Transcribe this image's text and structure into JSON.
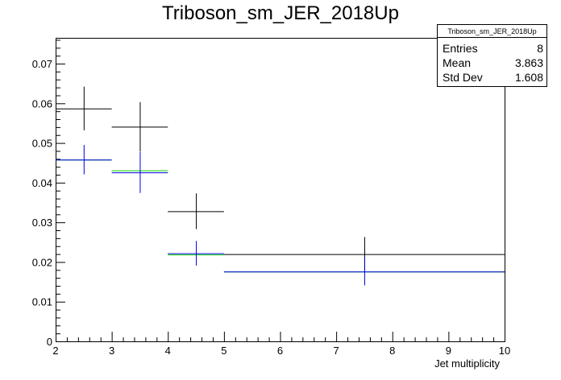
{
  "chart_data": {
    "type": "scatter",
    "title": "Triboson_sm_JER_2018Up",
    "xlabel": "Jet multiplicity",
    "ylabel": "",
    "xlim": [
      2,
      10
    ],
    "ylim": [
      0,
      0.0765
    ],
    "x_ticks": [
      "2",
      "3",
      "4",
      "5",
      "6",
      "7",
      "8",
      "9",
      "10"
    ],
    "y_ticks": [
      "0",
      "0.01",
      "0.02",
      "0.03",
      "0.04",
      "0.05",
      "0.06",
      "0.07"
    ],
    "grid": false,
    "series": [
      {
        "color": "#000000",
        "bins": [
          {
            "x_low": 2,
            "x_high": 3,
            "y": 0.0587,
            "err": 0.0055
          },
          {
            "x_low": 3,
            "x_high": 4,
            "y": 0.0541,
            "err": 0.0062
          },
          {
            "x_low": 4,
            "x_high": 5,
            "y": 0.0328,
            "err": 0.0045
          },
          {
            "x_low": 5,
            "x_high": 10,
            "y": 0.022,
            "err": 0.0043
          }
        ]
      },
      {
        "color": "#00cc00",
        "bins": [
          {
            "x_low": 2,
            "x_high": 3,
            "y": 0.0458,
            "err": 0.0
          },
          {
            "x_low": 3,
            "x_high": 4,
            "y": 0.0431,
            "err": 0.0
          },
          {
            "x_low": 4,
            "x_high": 5,
            "y": 0.0219,
            "err": 0.0
          },
          {
            "x_low": 5,
            "x_high": 10,
            "y": 0.0176,
            "err": 0.0
          }
        ]
      },
      {
        "color": "#0000dd",
        "bins": [
          {
            "x_low": 2,
            "x_high": 3,
            "y": 0.0458,
            "err": 0.0037
          },
          {
            "x_low": 3,
            "x_high": 4,
            "y": 0.0426,
            "err": 0.0052
          },
          {
            "x_low": 4,
            "x_high": 5,
            "y": 0.0222,
            "err": 0.0031
          },
          {
            "x_low": 5,
            "x_high": 10,
            "y": 0.0176,
            "err": 0.0035
          }
        ]
      }
    ],
    "stats_box": {
      "title": "Triboson_sm_JER_2018Up",
      "rows": [
        {
          "label": "Entries",
          "value": "8"
        },
        {
          "label": "Mean",
          "value": "3.863"
        },
        {
          "label": "Std Dev",
          "value": "1.608"
        }
      ]
    }
  }
}
